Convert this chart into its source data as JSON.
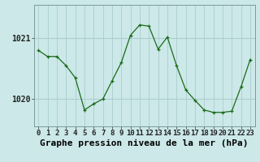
{
  "hours": [
    0,
    1,
    2,
    3,
    4,
    5,
    6,
    7,
    8,
    9,
    10,
    11,
    12,
    13,
    14,
    15,
    16,
    17,
    18,
    19,
    20,
    21,
    22,
    23
  ],
  "pressure": [
    1020.8,
    1020.7,
    1020.7,
    1020.55,
    1020.35,
    1019.82,
    1019.92,
    1020.0,
    1020.3,
    1020.6,
    1021.05,
    1021.22,
    1021.2,
    1020.82,
    1021.02,
    1020.55,
    1020.15,
    1019.98,
    1019.82,
    1019.78,
    1019.78,
    1019.8,
    1020.2,
    1020.65
  ],
  "line_color": "#1a6b1a",
  "marker_color": "#1a6b1a",
  "bg_color": "#cce8e8",
  "grid_color": "#aacece",
  "xlabel": "Graphe pression niveau de la mer (hPa)",
  "yticks": [
    1020,
    1021
  ],
  "ylim": [
    1019.55,
    1021.55
  ],
  "xlim": [
    -0.5,
    23.5
  ],
  "tick_fontsize": 7,
  "xlabel_fontsize": 8
}
